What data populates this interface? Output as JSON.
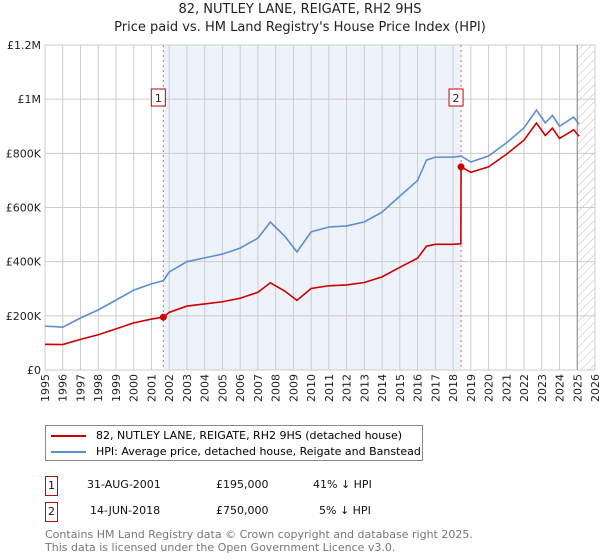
{
  "title": "82, NUTLEY LANE, REIGATE, RH2 9HS",
  "subtitle": "Price paid vs. HM Land Registry's House Price Index (HPI)",
  "chart_data": {
    "type": "line",
    "xlim": [
      1995,
      2026
    ],
    "ylim": [
      0,
      1200000
    ],
    "y_ticks": [
      {
        "v": 0,
        "label": "£0"
      },
      {
        "v": 200000,
        "label": "£200K"
      },
      {
        "v": 400000,
        "label": "£400K"
      },
      {
        "v": 600000,
        "label": "£600K"
      },
      {
        "v": 800000,
        "label": "£800K"
      },
      {
        "v": 1000000,
        "label": "£1M"
      },
      {
        "v": 1200000,
        "label": "£1.2M"
      }
    ],
    "x_ticks": [
      1995,
      1996,
      1997,
      1998,
      1999,
      2000,
      2001,
      2002,
      2003,
      2004,
      2005,
      2006,
      2007,
      2008,
      2009,
      2010,
      2011,
      2012,
      2013,
      2014,
      2015,
      2016,
      2017,
      2018,
      2019,
      2020,
      2021,
      2022,
      2023,
      2024,
      2025,
      2026
    ],
    "shaded_range": [
      2001.67,
      2018.45
    ],
    "hatched_from": 2025.0,
    "series": [
      {
        "name": "82, NUTLEY LANE, REIGATE, RH2 9HS (detached house)",
        "color": "#cc0000",
        "x": [
          1995,
          1996,
          1997,
          1998,
          1999,
          2000,
          2001,
          2001.66,
          2001.67,
          2002,
          2003,
          2004,
          2005,
          2006,
          2007,
          2007.7,
          2008.5,
          2009.2,
          2010,
          2011,
          2012,
          2013,
          2014,
          2015,
          2016,
          2016.5,
          2017,
          2018,
          2018.44,
          2018.45,
          2019,
          2020,
          2021,
          2022,
          2022.7,
          2023.2,
          2023.6,
          2024,
          2024.8,
          2025.1
        ],
        "y": [
          95000,
          94000,
          113000,
          130000,
          152000,
          174000,
          188000,
          195000,
          195000,
          213000,
          236000,
          244000,
          252000,
          265000,
          287000,
          322000,
          292000,
          257000,
          301000,
          311000,
          314000,
          323000,
          344000,
          379000,
          413000,
          457000,
          464000,
          464000,
          466000,
          750000,
          730000,
          750000,
          796000,
          849000,
          912000,
          866000,
          893000,
          855000,
          887000,
          863000
        ]
      },
      {
        "name": "HPI: Average price, detached house, Reigate and Banstead",
        "color": "#5b8fd0",
        "x": [
          1995,
          1996,
          1997,
          1998,
          1999,
          2000,
          2001,
          2001.67,
          2002,
          2003,
          2004,
          2005,
          2006,
          2007,
          2007.7,
          2008.5,
          2009.2,
          2010,
          2011,
          2012,
          2013,
          2014,
          2015,
          2016,
          2016.5,
          2017,
          2018,
          2018.45,
          2019,
          2020,
          2021,
          2022,
          2022.7,
          2023.2,
          2023.6,
          2024,
          2024.8,
          2025.1
        ],
        "y": [
          162000,
          158000,
          192000,
          222000,
          258000,
          295000,
          318000,
          330000,
          362000,
          400000,
          414000,
          428000,
          450000,
          487000,
          546000,
          495000,
          436000,
          510000,
          528000,
          532000,
          547000,
          583000,
          642000,
          700000,
          775000,
          786000,
          786000,
          790000,
          768000,
          790000,
          838000,
          894000,
          960000,
          912000,
          940000,
          900000,
          934000,
          908000
        ]
      }
    ],
    "sales": [
      {
        "label": "1",
        "x": 2001.67,
        "y": 195000
      },
      {
        "label": "2",
        "x": 2018.45,
        "y": 750000
      }
    ]
  },
  "legend": [
    "82, NUTLEY LANE, REIGATE, RH2 9HS (detached house)",
    "HPI: Average price, detached house, Reigate and Banstead"
  ],
  "transactions": [
    {
      "num": "1",
      "date": "31-AUG-2001",
      "price": "£195,000",
      "hpi": "41% ↓ HPI"
    },
    {
      "num": "2",
      "date": "14-JUN-2018",
      "price": "£750,000",
      "hpi": "5% ↓ HPI"
    }
  ],
  "footer": [
    "Contains HM Land Registry data © Crown copyright and database right 2025.",
    "This data is licensed under the Open Government Licence v3.0."
  ]
}
